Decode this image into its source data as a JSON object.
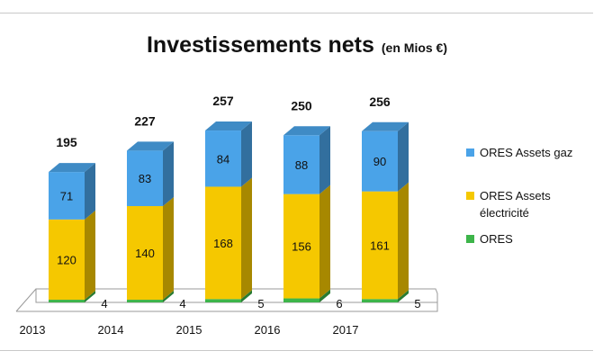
{
  "chart_data": {
    "type": "bar",
    "stacked": true,
    "title": "Investissements nets",
    "title_unit": "(en Mios €)",
    "categories": [
      "2013",
      "2014",
      "2015",
      "2016",
      "2017"
    ],
    "series": [
      {
        "name": "ORES",
        "color": "#3db54a",
        "values": [
          4,
          4,
          5,
          6,
          5
        ]
      },
      {
        "name": "ORES Assets électricité",
        "color": "#f5c800",
        "values": [
          120,
          140,
          168,
          156,
          161
        ]
      },
      {
        "name": "ORES Assets gaz",
        "color": "#4aa3e8",
        "values": [
          71,
          83,
          84,
          88,
          90
        ]
      }
    ],
    "totals": [
      195,
      227,
      257,
      250,
      256
    ],
    "legend_order": [
      "ORES Assets gaz",
      "ORES Assets électricité",
      "ORES"
    ],
    "legend_position": "right",
    "grid": false,
    "y_axis_visible": false
  }
}
